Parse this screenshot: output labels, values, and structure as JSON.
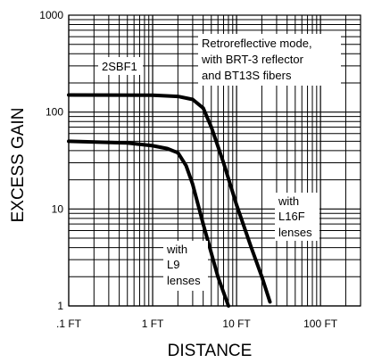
{
  "chart_data": {
    "type": "line",
    "xscale": "log",
    "yscale": "log",
    "xlim": [
      0.1,
      300
    ],
    "ylim": [
      1,
      1000
    ],
    "xlabel": "DISTANCE",
    "ylabel": "EXCESS GAIN",
    "x_tick_labels": [
      {
        "value": 0.1,
        "label": ".1 FT"
      },
      {
        "value": 1,
        "label": "1 FT"
      },
      {
        "value": 10,
        "label": "10 FT"
      },
      {
        "value": 100,
        "label": "100 FT"
      }
    ],
    "y_tick_labels": [
      {
        "value": 1,
        "label": "1"
      },
      {
        "value": 10,
        "label": "10"
      },
      {
        "value": 100,
        "label": "100"
      },
      {
        "value": 1000,
        "label": "1000"
      }
    ],
    "grid": true,
    "series": [
      {
        "name": "2SBF1",
        "x": [
          0.1,
          1,
          2,
          3,
          4,
          5,
          7,
          10,
          15,
          20,
          25
        ],
        "y": [
          150,
          149,
          145,
          135,
          110,
          70,
          30,
          11,
          4,
          2,
          1.1
        ]
      },
      {
        "name": "with L9 lenses",
        "x": [
          0.1,
          0.5,
          1,
          1.5,
          2,
          2.5,
          3,
          4,
          5,
          6,
          8
        ],
        "y": [
          50,
          48,
          45,
          42,
          38,
          28,
          18,
          7,
          3.5,
          2,
          1
        ]
      }
    ],
    "annotations": [
      {
        "text": "2SBF1"
      },
      {
        "text": "Retroreflective mode,"
      },
      {
        "text": "with BRT-3 reflector"
      },
      {
        "text": "and BT13S fibers"
      },
      {
        "text": "with"
      },
      {
        "text": "L16F"
      },
      {
        "text": "lenses"
      },
      {
        "text": "with"
      },
      {
        "text": "L9"
      },
      {
        "text": "lenses"
      }
    ]
  }
}
